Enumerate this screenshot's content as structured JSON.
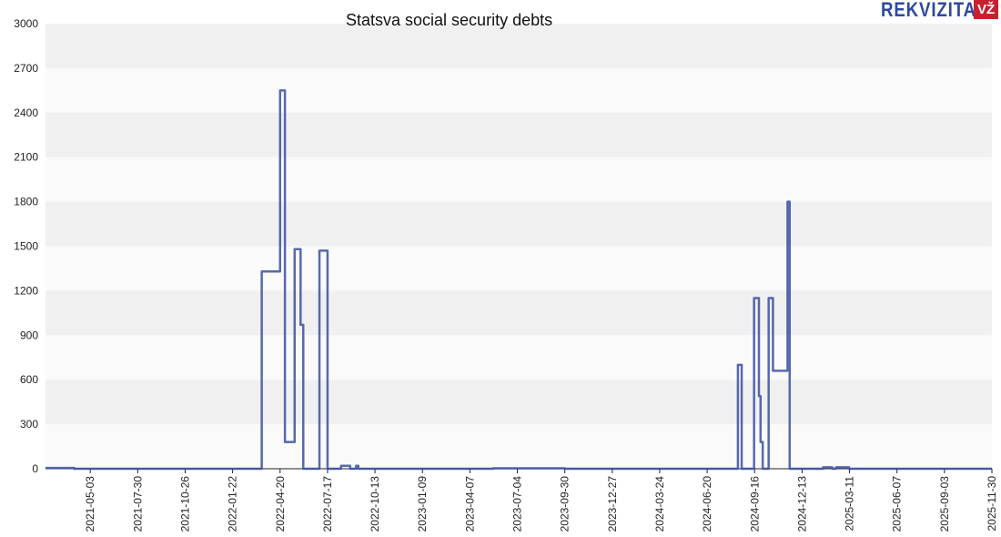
{
  "logo": {
    "text": "REKVIZITAI",
    "badge": "VŽ"
  },
  "chart_data": {
    "type": "line",
    "title": "Statsva social security debts",
    "xlabel": "",
    "ylabel": "",
    "ylim": [
      0,
      3000
    ],
    "xlim": [
      "2021-02-09",
      "2025-11-30"
    ],
    "yticks": [
      0,
      300,
      600,
      900,
      1200,
      1500,
      1800,
      2100,
      2400,
      2700,
      3000
    ],
    "xticks": [
      "2021-05-03",
      "2021-07-30",
      "2021-10-26",
      "2022-01-22",
      "2022-04-20",
      "2022-07-17",
      "2022-10-13",
      "2023-01-09",
      "2023-04-07",
      "2023-07-04",
      "2023-09-30",
      "2023-12-27",
      "2024-03-24",
      "2024-06-20",
      "2024-09-16",
      "2024-12-13",
      "2025-03-11",
      "2025-06-07",
      "2025-09-03",
      "2025-11-30"
    ],
    "grid": true,
    "series": [
      {
        "name": "Social security debts",
        "color": "#3a4fa0",
        "step": "after",
        "points": [
          [
            "2021-02-09",
            5
          ],
          [
            "2021-03-12",
            5
          ],
          [
            "2021-04-03",
            0
          ],
          [
            "2022-03-17",
            1330
          ],
          [
            "2022-04-20",
            2550
          ],
          [
            "2022-04-29",
            180
          ],
          [
            "2022-05-17",
            1480
          ],
          [
            "2022-05-28",
            970
          ],
          [
            "2022-06-02",
            0
          ],
          [
            "2022-07-02",
            1470
          ],
          [
            "2022-07-17",
            0
          ],
          [
            "2022-08-11",
            20
          ],
          [
            "2022-08-28",
            0
          ],
          [
            "2022-09-08",
            20
          ],
          [
            "2022-09-12",
            0
          ],
          [
            "2023-05-20",
            3
          ],
          [
            "2023-09-30",
            0
          ],
          [
            "2024-08-16",
            700
          ],
          [
            "2024-08-23",
            0
          ],
          [
            "2024-09-15",
            1150
          ],
          [
            "2024-09-24",
            490
          ],
          [
            "2024-09-27",
            180
          ],
          [
            "2024-10-01",
            0
          ],
          [
            "2024-10-12",
            1150
          ],
          [
            "2024-10-20",
            660
          ],
          [
            "2024-11-16",
            1800
          ],
          [
            "2024-11-20",
            0
          ],
          [
            "2025-01-21",
            10
          ],
          [
            "2025-02-07",
            0
          ],
          [
            "2025-02-14",
            10
          ],
          [
            "2025-03-10",
            0
          ],
          [
            "2025-11-30",
            0
          ]
        ]
      }
    ]
  }
}
